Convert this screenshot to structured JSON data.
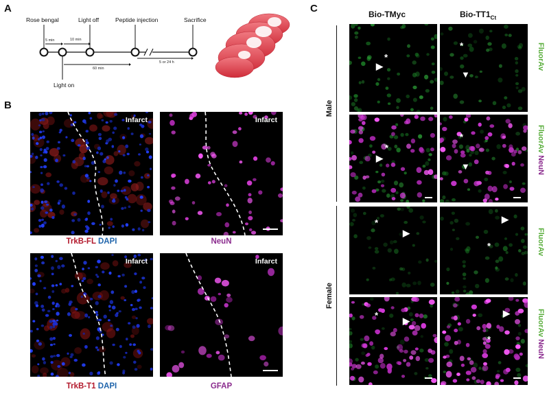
{
  "panel_letters": {
    "a": "A",
    "b": "B",
    "c": "C"
  },
  "panel_a": {
    "events": {
      "rose_bengal": "Rose bengal",
      "light_off": "Light off",
      "peptide_injection": "Peptide injection",
      "sacrifice": "Sacrifice",
      "light_on": "Light on"
    },
    "intervals": {
      "five_min": "5 min",
      "ten_min": "10 min",
      "sixty_min": "60 min",
      "five_or_24h": "5 or 24 h"
    },
    "colors": {
      "brain_light": "#ee6f78",
      "brain_dark": "#d9343f"
    }
  },
  "panel_b": {
    "infarct_label": "Infarct",
    "captions": {
      "top_left": {
        "marker": "TrkB-FL",
        "stain": "DAPI"
      },
      "top_right": "NeuN",
      "bottom_left": {
        "marker": "TrkB-T1",
        "stain": "DAPI"
      },
      "bottom_right": "GFAP"
    },
    "colors": {
      "red_label": "#b2182b",
      "blue_label": "#2166ac",
      "magenta_label": "#8b2c8e"
    }
  },
  "panel_c": {
    "columns": {
      "left": "Bio-TMyc",
      "right_main": "Bio-TT1",
      "right_sub": "Ct"
    },
    "rows": {
      "male": "Male",
      "female": "Female"
    },
    "side_labels": {
      "fluor": "FluorAv",
      "neun": "NeuN"
    },
    "colors": {
      "green": "#5aae3d",
      "magenta": "#8b2c8e"
    }
  }
}
